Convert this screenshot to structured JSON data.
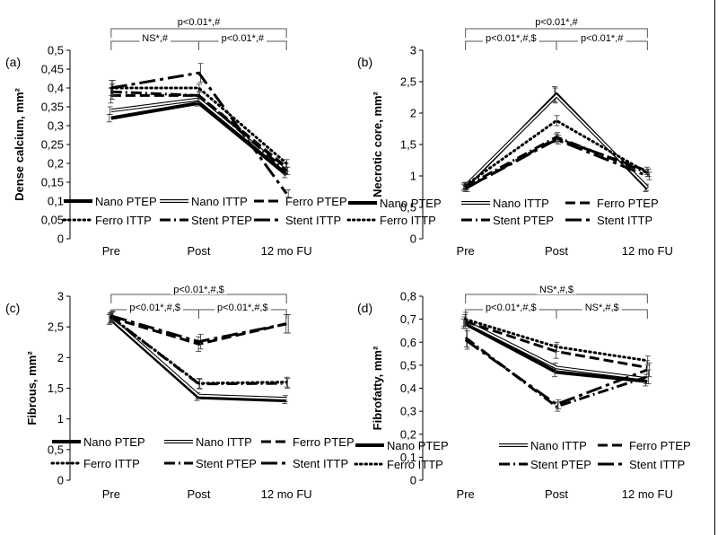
{
  "chart_data": [
    {
      "panel": "(a)",
      "type": "line",
      "ylabel": "Dense calcium, mm²",
      "categories": [
        "Pre",
        "Post",
        "12 mo FU"
      ],
      "ylim": [
        0,
        0.5
      ],
      "yticks": [
        "0",
        "0,05",
        "0,1",
        "0,15",
        "0,2",
        "0,25",
        "0,3",
        "0,35",
        "0,4",
        "0,45",
        "0,5"
      ],
      "series": [
        {
          "name": "Nano PTEP",
          "values": [
            0.32,
            0.36,
            0.17
          ],
          "err": [
            0.01,
            0.008,
            0.008
          ]
        },
        {
          "name": "Nano ITTP",
          "values": [
            0.34,
            0.37,
            0.18
          ],
          "err": [
            0.01,
            0.008,
            0.008
          ]
        },
        {
          "name": "Ferro PTEP",
          "values": [
            0.38,
            0.38,
            0.19
          ],
          "err": [
            0.02,
            0.02,
            0.01
          ]
        },
        {
          "name": "Ferro ITTP",
          "values": [
            0.4,
            0.4,
            0.2
          ],
          "err": [
            0.02,
            0.01,
            0.01
          ]
        },
        {
          "name": "Stent PTEP",
          "values": [
            0.39,
            0.38,
            0.18
          ],
          "err": [
            0.02,
            0.01,
            0.01
          ]
        },
        {
          "name": "Stent ITTP",
          "values": [
            0.4,
            0.44,
            0.12
          ],
          "err": [
            0.02,
            0.025,
            0.01
          ]
        }
      ],
      "brackets": [
        {
          "label": "p<0.01*,#",
          "from": "Pre",
          "to": "12 mo FU",
          "level": "top"
        },
        {
          "label": "NS*,#",
          "from": "Pre",
          "to": "Post",
          "level": "low"
        },
        {
          "label": "p<0.01*,#",
          "from": "Post",
          "to": "12 mo FU",
          "level": "low"
        }
      ]
    },
    {
      "panel": "(b)",
      "type": "line",
      "ylabel": "Necrotic core, mm²",
      "categories": [
        "Pre",
        "Post",
        "12 mo FU"
      ],
      "ylim": [
        0,
        3
      ],
      "yticks": [
        "0",
        "0,5",
        "1",
        "1,5",
        "2",
        "2,5",
        "3"
      ],
      "series": [
        {
          "name": "Nano PTEP",
          "values": [
            0.82,
            2.3,
            0.8
          ],
          "err": [
            0.05,
            0.12,
            0.05
          ]
        },
        {
          "name": "Nano ITTP",
          "values": [
            0.84,
            2.28,
            0.82
          ],
          "err": [
            0.05,
            0.12,
            0.05
          ]
        },
        {
          "name": "Ferro PTEP",
          "values": [
            0.8,
            1.6,
            1.08
          ],
          "err": [
            0.05,
            0.07,
            0.06
          ]
        },
        {
          "name": "Ferro ITTP",
          "values": [
            0.85,
            1.88,
            1.05
          ],
          "err": [
            0.05,
            0.08,
            0.06
          ]
        },
        {
          "name": "Stent PTEP",
          "values": [
            0.83,
            1.62,
            1.05
          ],
          "err": [
            0.05,
            0.07,
            0.06
          ]
        },
        {
          "name": "Stent ITTP",
          "values": [
            0.8,
            1.58,
            1.0
          ],
          "err": [
            0.05,
            0.07,
            0.06
          ]
        }
      ],
      "brackets": [
        {
          "label": "p<0.01*,#",
          "from": "Pre",
          "to": "12 mo FU",
          "level": "top"
        },
        {
          "label": "p<0.01*,#,$",
          "from": "Pre",
          "to": "Post",
          "level": "low"
        },
        {
          "label": "p<0.01*,#",
          "from": "Post",
          "to": "12 mo FU",
          "level": "low"
        }
      ]
    },
    {
      "panel": "(c)",
      "type": "line",
      "ylabel": "Fibrous, mm²",
      "categories": [
        "Pre",
        "Post",
        "12 mo FU"
      ],
      "ylim": [
        0,
        3
      ],
      "yticks": [
        "0",
        "0,5",
        "1",
        "1,5",
        "2",
        "2,5",
        "3"
      ],
      "series": [
        {
          "name": "Nano PTEP",
          "values": [
            2.62,
            1.35,
            1.3
          ],
          "err": [
            0.08,
            0.05,
            0.05
          ]
        },
        {
          "name": "Nano ITTP",
          "values": [
            2.64,
            1.38,
            1.33
          ],
          "err": [
            0.08,
            0.05,
            0.05
          ]
        },
        {
          "name": "Ferro PTEP",
          "values": [
            2.65,
            2.22,
            2.55
          ],
          "err": [
            0.08,
            0.12,
            0.15
          ]
        },
        {
          "name": "Ferro ITTP",
          "values": [
            2.66,
            1.58,
            1.6
          ],
          "err": [
            0.08,
            0.08,
            0.08
          ]
        },
        {
          "name": "Stent PTEP",
          "values": [
            2.66,
            1.57,
            1.58
          ],
          "err": [
            0.08,
            0.08,
            0.08
          ]
        },
        {
          "name": "Stent ITTP",
          "values": [
            2.68,
            2.26,
            2.55
          ],
          "err": [
            0.08,
            0.12,
            0.15
          ]
        }
      ],
      "brackets": [
        {
          "label": "p<0.01*,#,$",
          "from": "Pre",
          "to": "12 mo FU",
          "level": "top"
        },
        {
          "label": "p<0.01*,#,$",
          "from": "Pre",
          "to": "Post",
          "level": "low"
        },
        {
          "label": "p<0.01*,#,$",
          "from": "Post",
          "to": "12 mo FU",
          "level": "low"
        }
      ]
    },
    {
      "panel": "(d)",
      "type": "line",
      "ylabel": "Fibrofatty, mm²",
      "categories": [
        "Pre",
        "Post",
        "12 mo FU"
      ],
      "ylim": [
        0,
        0.8
      ],
      "yticks": [
        "0",
        "0,1",
        "0,2",
        "0,3",
        "0,4",
        "0,5",
        "0,6",
        "0,7",
        "0,8"
      ],
      "series": [
        {
          "name": "Nano PTEP",
          "values": [
            0.68,
            0.47,
            0.43
          ],
          "err": [
            0.02,
            0.02,
            0.02
          ]
        },
        {
          "name": "Nano ITTP",
          "values": [
            0.69,
            0.49,
            0.44
          ],
          "err": [
            0.02,
            0.02,
            0.02
          ]
        },
        {
          "name": "Ferro PTEP",
          "values": [
            0.69,
            0.56,
            0.49
          ],
          "err": [
            0.03,
            0.03,
            0.03
          ]
        },
        {
          "name": "Ferro ITTP",
          "values": [
            0.7,
            0.58,
            0.52
          ],
          "err": [
            0.03,
            0.02,
            0.02
          ]
        },
        {
          "name": "Stent PTEP",
          "values": [
            0.62,
            0.32,
            0.45
          ],
          "err": [
            0.04,
            0.02,
            0.03
          ]
        },
        {
          "name": "Stent ITTP",
          "values": [
            0.61,
            0.33,
            0.48
          ],
          "err": [
            0.04,
            0.02,
            0.03
          ]
        }
      ],
      "brackets": [
        {
          "label": "NS*,#,$",
          "from": "Pre",
          "to": "12 mo FU",
          "level": "top"
        },
        {
          "label": "p<0.01*,#,$",
          "from": "Pre",
          "to": "Post",
          "level": "low"
        },
        {
          "label": "NS*,#,$",
          "from": "Post",
          "to": "12 mo FU",
          "level": "low"
        }
      ]
    }
  ],
  "styles": {
    "Nano PTEP": {
      "kind": "thick",
      "color": "#000000"
    },
    "Nano ITTP": {
      "kind": "double",
      "color": "#000000"
    },
    "Ferro PTEP": {
      "kind": "dashed",
      "color": "#000000"
    },
    "Ferro ITTP": {
      "kind": "dotted",
      "color": "#000000"
    },
    "Stent PTEP": {
      "kind": "dashdot",
      "color": "#000000"
    },
    "Stent ITTP": {
      "kind": "longdash",
      "color": "#000000"
    }
  },
  "legend_order": [
    [
      "Nano PTEP",
      "Nano ITTP",
      "Ferro PTEP"
    ],
    [
      "Ferro ITTP",
      "Stent PTEP",
      "Stent ITTP"
    ]
  ]
}
